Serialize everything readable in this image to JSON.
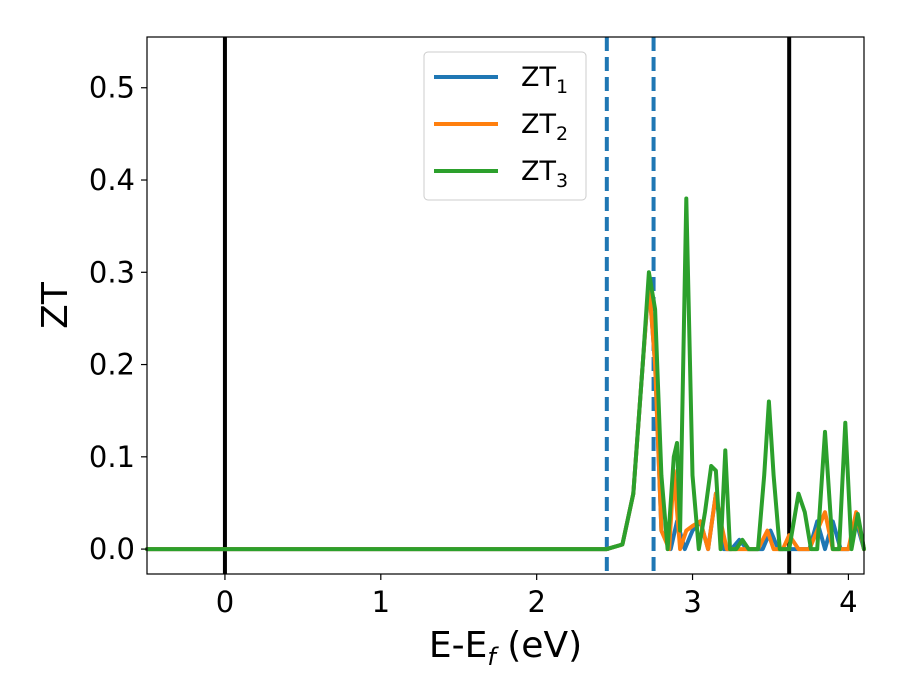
{
  "chart_data": {
    "type": "line",
    "xlabel": "E-E",
    "xlabel_sub": "f",
    "xlabel_unit": " (eV)",
    "ylabel": "ZT",
    "xlim": [
      -0.5,
      4.1
    ],
    "ylim": [
      -0.027,
      0.555
    ],
    "x_ticks": [
      0,
      1,
      2,
      3,
      4
    ],
    "x_tick_labels": [
      "0",
      "1",
      "2",
      "3",
      "4"
    ],
    "y_ticks": [
      0.0,
      0.1,
      0.2,
      0.3,
      0.4,
      0.5
    ],
    "y_tick_labels": [
      "0.0",
      "0.1",
      "0.2",
      "0.3",
      "0.4",
      "0.5"
    ],
    "grid": false,
    "legend_position": "top-center",
    "vertical_lines": [
      {
        "x": 0.0,
        "style": "solid",
        "color": "#000000"
      },
      {
        "x": 2.45,
        "style": "dashed",
        "color": "#1f77b4"
      },
      {
        "x": 2.75,
        "style": "dashed",
        "color": "#1f77b4"
      },
      {
        "x": 3.62,
        "style": "solid",
        "color": "#000000"
      }
    ],
    "series": [
      {
        "name": "ZT",
        "subscript": "1",
        "color": "#1f77b4",
        "x": [
          -0.5,
          2.45,
          2.55,
          2.62,
          2.68,
          2.72,
          2.76,
          2.8,
          2.86,
          2.9,
          2.95,
          3.0,
          3.05,
          3.1,
          3.15,
          3.2,
          3.25,
          3.3,
          3.35,
          3.4,
          3.45,
          3.5,
          3.55,
          3.62,
          3.68,
          3.75,
          3.8,
          3.85,
          3.9,
          3.95,
          4.0,
          4.05,
          4.1
        ],
        "y": [
          0.0,
          0.0,
          0.005,
          0.06,
          0.2,
          0.29,
          0.2,
          0.02,
          0.0,
          0.03,
          0.0,
          0.02,
          0.03,
          0.0,
          0.06,
          0.0,
          0.0,
          0.01,
          0.0,
          0.0,
          0.0,
          0.02,
          0.0,
          0.0,
          0.0,
          0.0,
          0.03,
          0.0,
          0.03,
          0.0,
          0.0,
          0.03,
          0.0
        ]
      },
      {
        "name": "ZT",
        "subscript": "2",
        "color": "#ff7f0e",
        "x": [
          -0.5,
          2.45,
          2.55,
          2.62,
          2.68,
          2.72,
          2.76,
          2.8,
          2.85,
          2.88,
          2.92,
          2.96,
          3.0,
          3.05,
          3.1,
          3.15,
          3.18,
          3.22,
          3.28,
          3.35,
          3.42,
          3.48,
          3.52,
          3.58,
          3.62,
          3.68,
          3.75,
          3.8,
          3.85,
          3.9,
          3.95,
          4.0,
          4.05,
          4.1
        ],
        "y": [
          0.0,
          0.0,
          0.005,
          0.06,
          0.2,
          0.29,
          0.2,
          0.02,
          0.0,
          0.085,
          0.0,
          0.02,
          0.025,
          0.03,
          0.0,
          0.06,
          0.03,
          0.0,
          0.0,
          0.0,
          0.0,
          0.02,
          0.0,
          0.0,
          0.015,
          0.0,
          0.0,
          0.02,
          0.04,
          0.0,
          0.0,
          0.0,
          0.04,
          0.0
        ]
      },
      {
        "name": "ZT",
        "subscript": "3",
        "color": "#2ca02c",
        "x": [
          -0.5,
          2.45,
          2.55,
          2.62,
          2.68,
          2.72,
          2.76,
          2.8,
          2.84,
          2.88,
          2.9,
          2.92,
          2.96,
          3.0,
          3.04,
          3.08,
          3.12,
          3.15,
          3.18,
          3.21,
          3.24,
          3.28,
          3.32,
          3.36,
          3.42,
          3.46,
          3.49,
          3.52,
          3.56,
          3.62,
          3.68,
          3.72,
          3.76,
          3.8,
          3.85,
          3.9,
          3.94,
          3.98,
          4.02,
          4.06,
          4.1
        ],
        "y": [
          0.0,
          0.0,
          0.005,
          0.06,
          0.2,
          0.3,
          0.26,
          0.08,
          0.0,
          0.1,
          0.115,
          0.02,
          0.38,
          0.08,
          0.0,
          0.04,
          0.09,
          0.085,
          0.0,
          0.107,
          0.0,
          0.0,
          0.01,
          0.0,
          0.0,
          0.08,
          0.16,
          0.08,
          0.0,
          0.0,
          0.06,
          0.04,
          0.0,
          0.0,
          0.127,
          0.0,
          0.0,
          0.137,
          0.0,
          0.038,
          0.0
        ]
      }
    ]
  }
}
